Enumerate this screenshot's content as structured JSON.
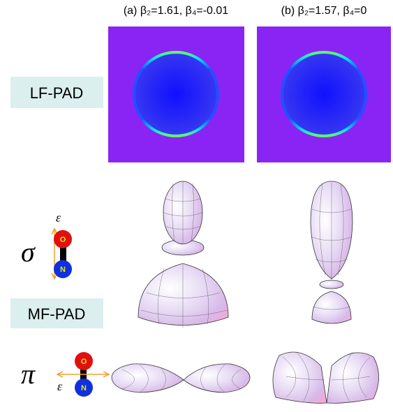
{
  "columns": [
    {
      "title": "(a) β₂=1.61, β₄=-0.01"
    },
    {
      "title": "(b) β₂=1.57, β₄=0"
    }
  ],
  "rows": {
    "lf": {
      "label": "LF-PAD"
    },
    "mf": {
      "label": "MF-PAD"
    }
  },
  "sigma": {
    "symbol": "σ",
    "field": "ε",
    "top_atom": "O",
    "bottom_atom": "N"
  },
  "pi": {
    "symbol": "π",
    "field": "ε",
    "top_atom": "O",
    "bottom_atom": "N"
  }
}
